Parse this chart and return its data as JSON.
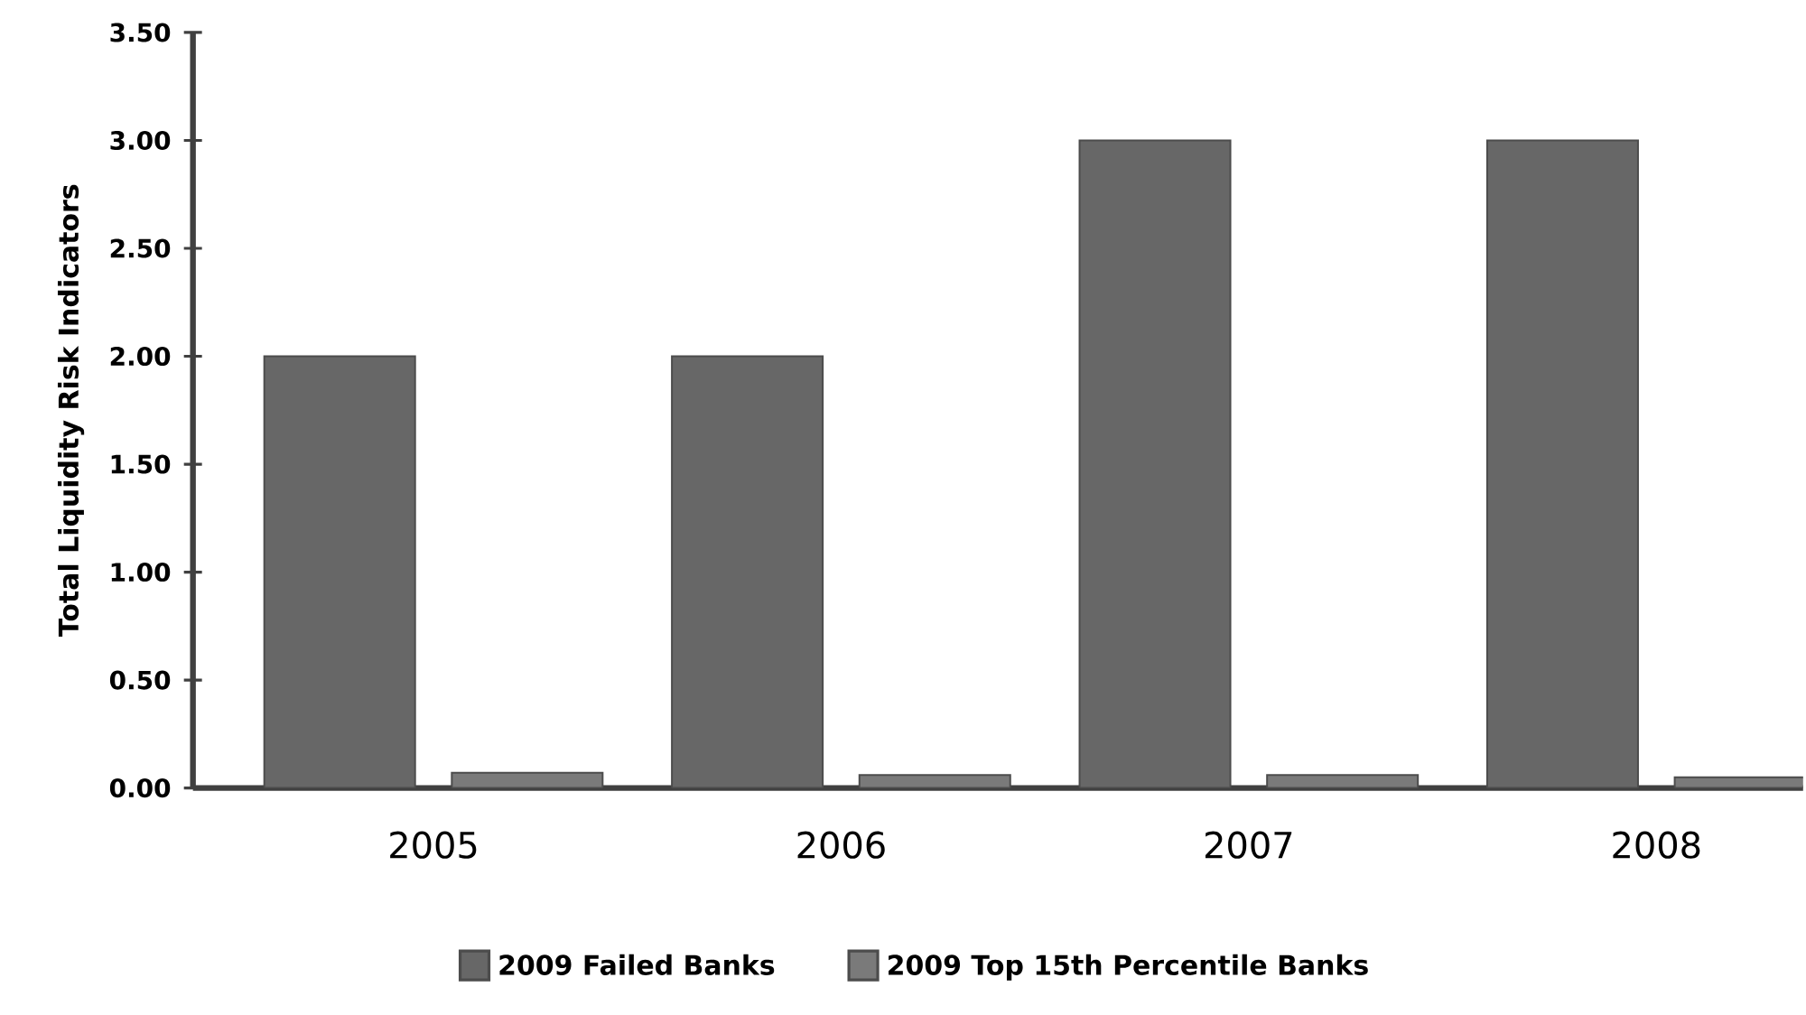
{
  "chart_data": {
    "type": "bar",
    "ylabel": "Total Liquidity Risk Indicators",
    "categories": [
      "2005",
      "2006",
      "2007",
      "2008"
    ],
    "series": [
      {
        "name": "2009 Failed Banks",
        "color": "#676767",
        "values": [
          2.0,
          2.0,
          3.0,
          3.0
        ]
      },
      {
        "name": "2009 Top 15th Percentile Banks",
        "color": "#7a7a7a",
        "values": [
          0.07,
          0.06,
          0.06,
          0.05
        ]
      }
    ],
    "ylim": [
      0,
      3.5
    ],
    "yticks": [
      {
        "value": 0,
        "label": "0.00"
      },
      {
        "value": 0.5,
        "label": "0.50"
      },
      {
        "value": 1,
        "label": "1.00"
      },
      {
        "value": 1.5,
        "label": "1.50"
      },
      {
        "value": 2,
        "label": "2.00"
      },
      {
        "value": 2.5,
        "label": "2.50"
      },
      {
        "value": 3,
        "label": "3.00"
      },
      {
        "value": 3.5,
        "label": "3.50"
      }
    ],
    "grid": false,
    "legend": "bottom"
  }
}
